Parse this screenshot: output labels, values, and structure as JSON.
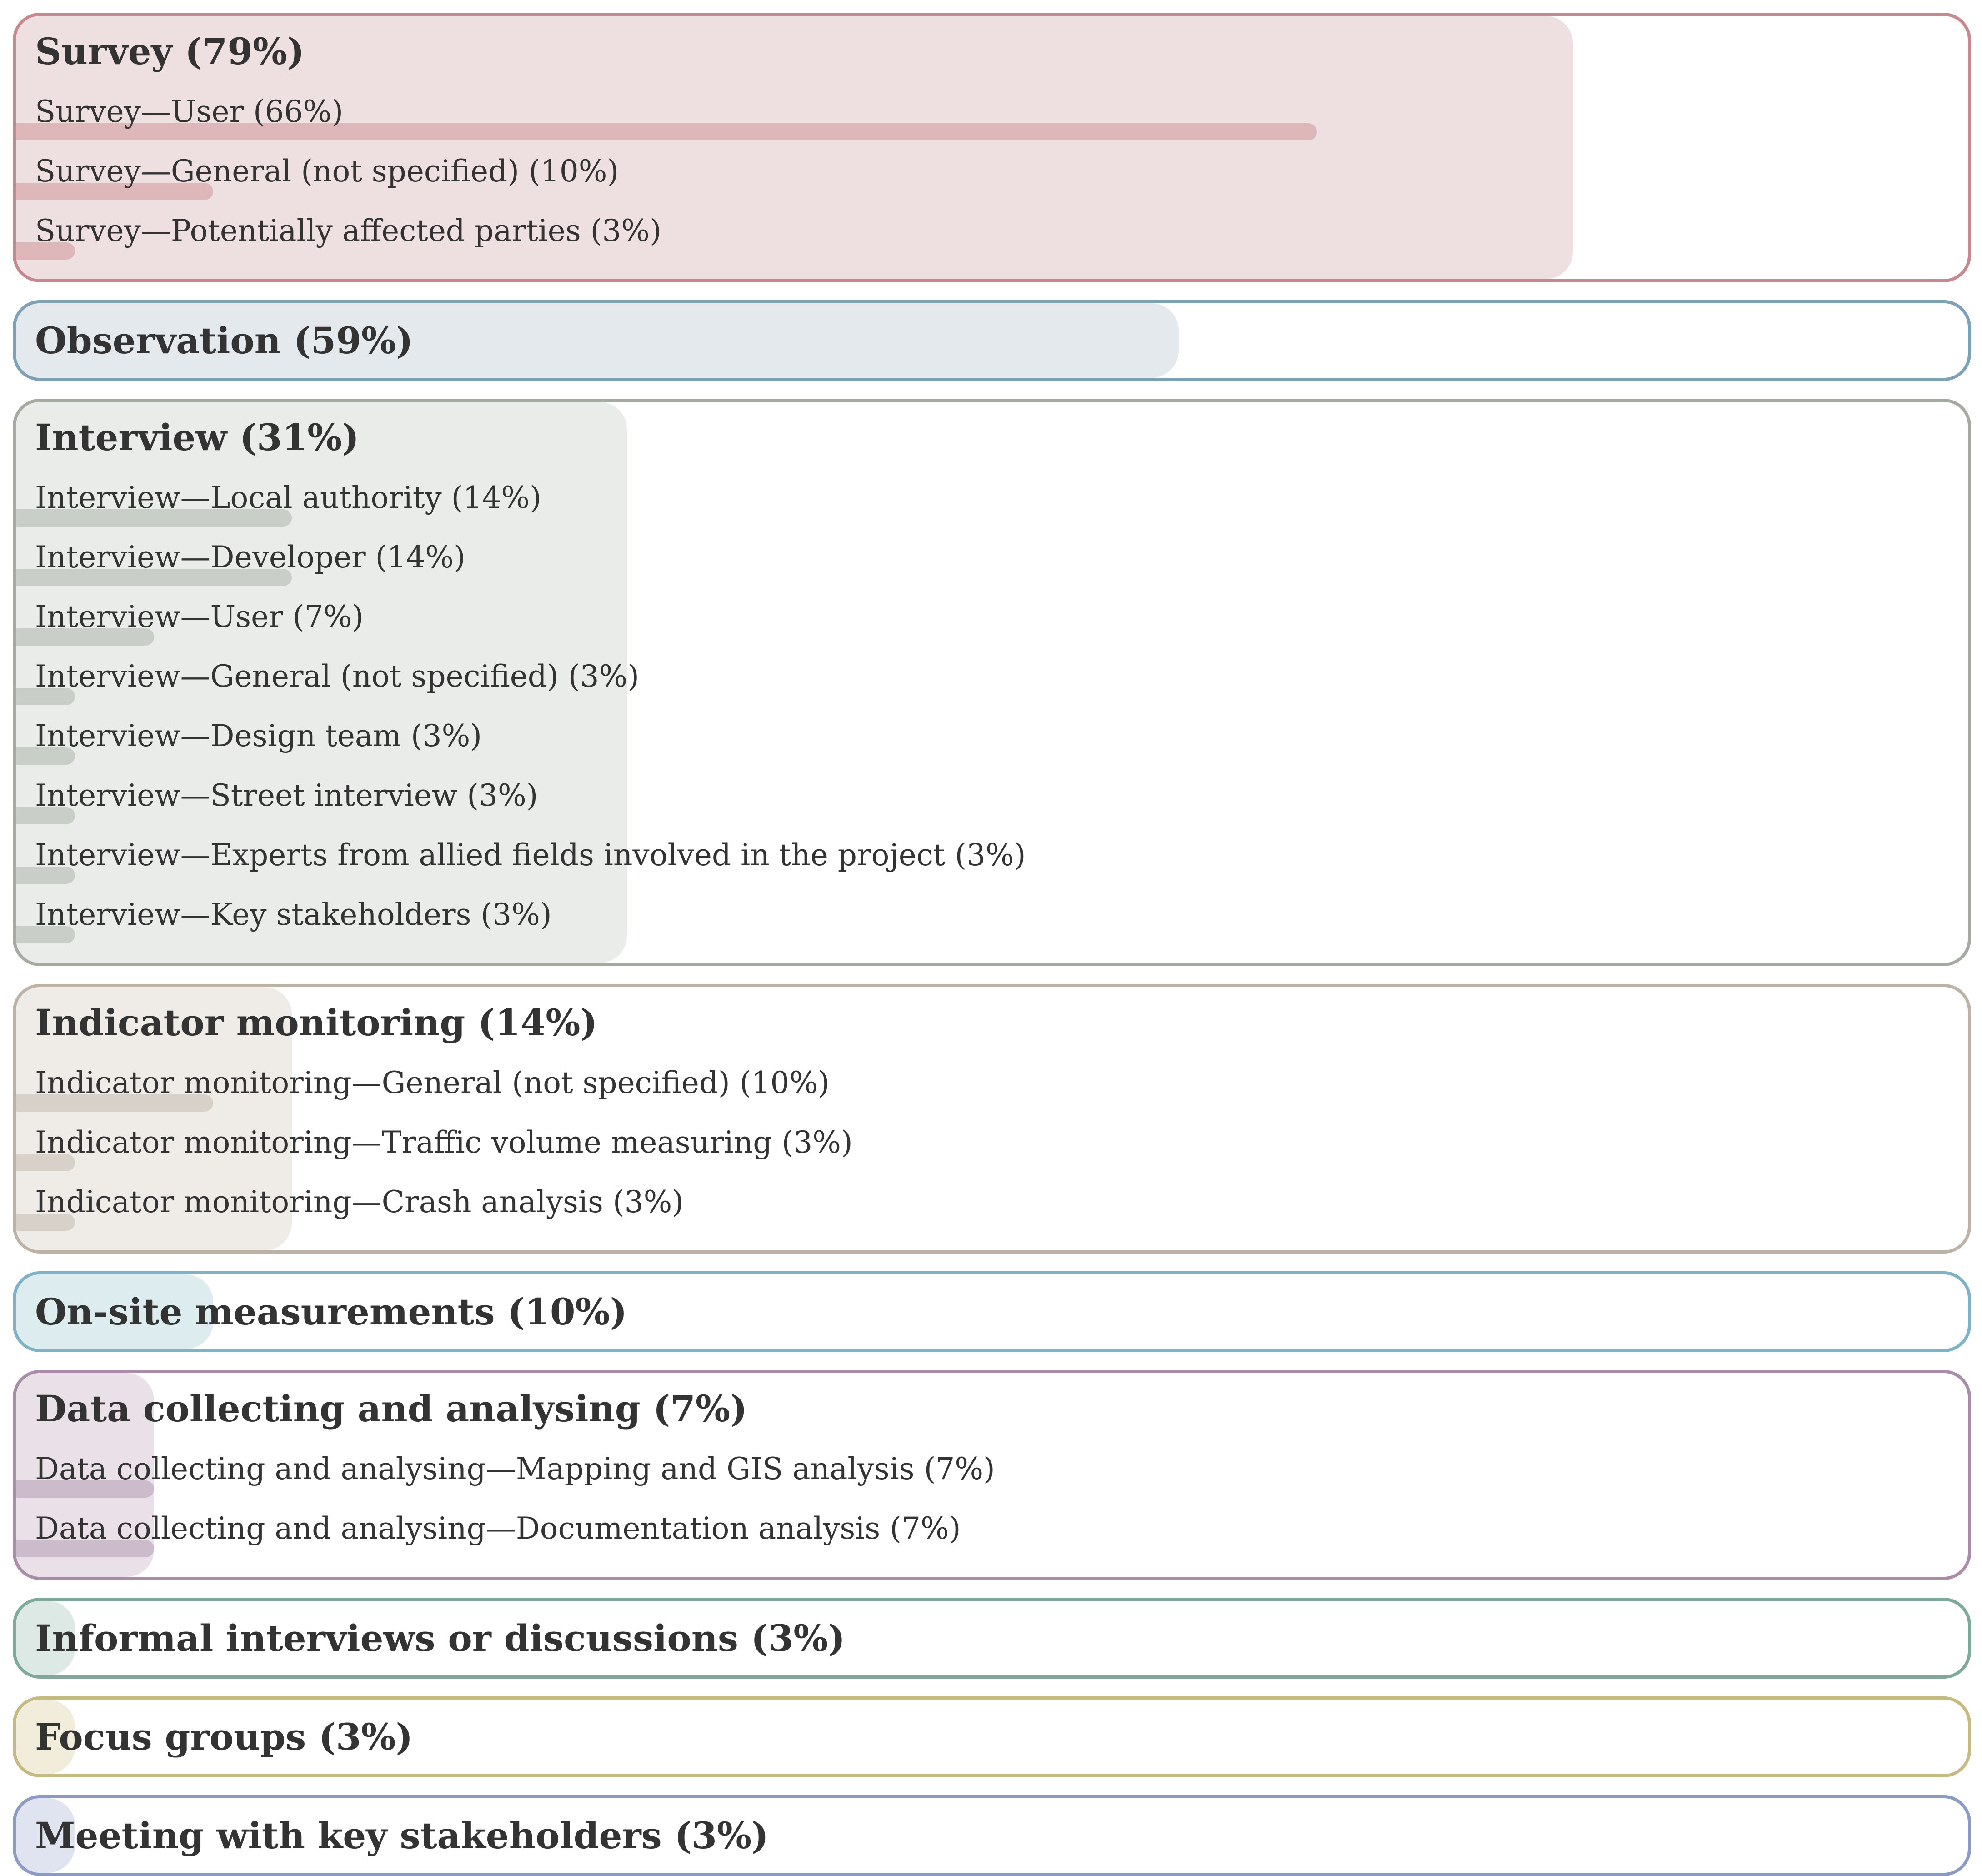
{
  "chart_data": {
    "type": "bar",
    "orientation": "horizontal",
    "xlim": [
      0,
      100
    ],
    "unit": "%",
    "groups": [
      {
        "label": "Survey (79%)",
        "value": 79,
        "color": "#c9878f",
        "fill": "#eedfe0",
        "items": [
          {
            "label": "Survey—User (66%)",
            "value": 66
          },
          {
            "label": "Survey—General (not specified) (10%)",
            "value": 10
          },
          {
            "label": "Survey—Potentially affected parties (3%)",
            "value": 3
          }
        ]
      },
      {
        "label": "Observation (59%)",
        "value": 59,
        "color": "#7da1b7",
        "fill": "#e4e9ee",
        "items": []
      },
      {
        "label": "Interview (31%)",
        "value": 31,
        "color": "#a5aba2",
        "fill": "#eaece9",
        "items": [
          {
            "label": "Interview—Local authority (14%)",
            "value": 14
          },
          {
            "label": "Interview—Developer (14%)",
            "value": 14
          },
          {
            "label": "Interview—User (7%)",
            "value": 7
          },
          {
            "label": "Interview—General (not specified) (3%)",
            "value": 3
          },
          {
            "label": "Interview—Design team (3%)",
            "value": 3
          },
          {
            "label": "Interview—Street interview (3%)",
            "value": 3
          },
          {
            "label": "Interview—Experts from allied fields involved in the project (3%)",
            "value": 3
          },
          {
            "label": "Interview—Key stakeholders (3%)",
            "value": 3
          }
        ]
      },
      {
        "label": "Indicator monitoring (14%)",
        "value": 14,
        "color": "#bdb2a6",
        "fill": "#efece8",
        "items": [
          {
            "label": "Indicator monitoring—General (not specified) (10%)",
            "value": 10
          },
          {
            "label": "Indicator monitoring—Traffic volume measuring (3%)",
            "value": 3
          },
          {
            "label": "Indicator monitoring—Crash analysis (3%)",
            "value": 3
          }
        ]
      },
      {
        "label": "On-site measurements (10%)",
        "value": 10,
        "color": "#7fb2c4",
        "fill": "#dcecef",
        "items": []
      },
      {
        "label": "Data collecting and analysing (7%)",
        "value": 7,
        "color": "#a98da8",
        "fill": "#eae1e8",
        "items": [
          {
            "label": "Data collecting and analysing—Mapping and GIS analysis (7%)",
            "value": 7
          },
          {
            "label": "Data collecting and analysing—Documentation analysis (7%)",
            "value": 7
          }
        ]
      },
      {
        "label": "Informal interviews or discussions (3%)",
        "value": 3,
        "color": "#7fa99a",
        "fill": "#dde9e4",
        "items": []
      },
      {
        "label": "Focus groups (3%)",
        "value": 3,
        "color": "#c7b982",
        "fill": "#f1edda",
        "items": []
      },
      {
        "label": "Meeting with key stakeholders (3%)",
        "value": 3,
        "color": "#8b9bc2",
        "fill": "#e0e4f0",
        "items": []
      }
    ]
  }
}
